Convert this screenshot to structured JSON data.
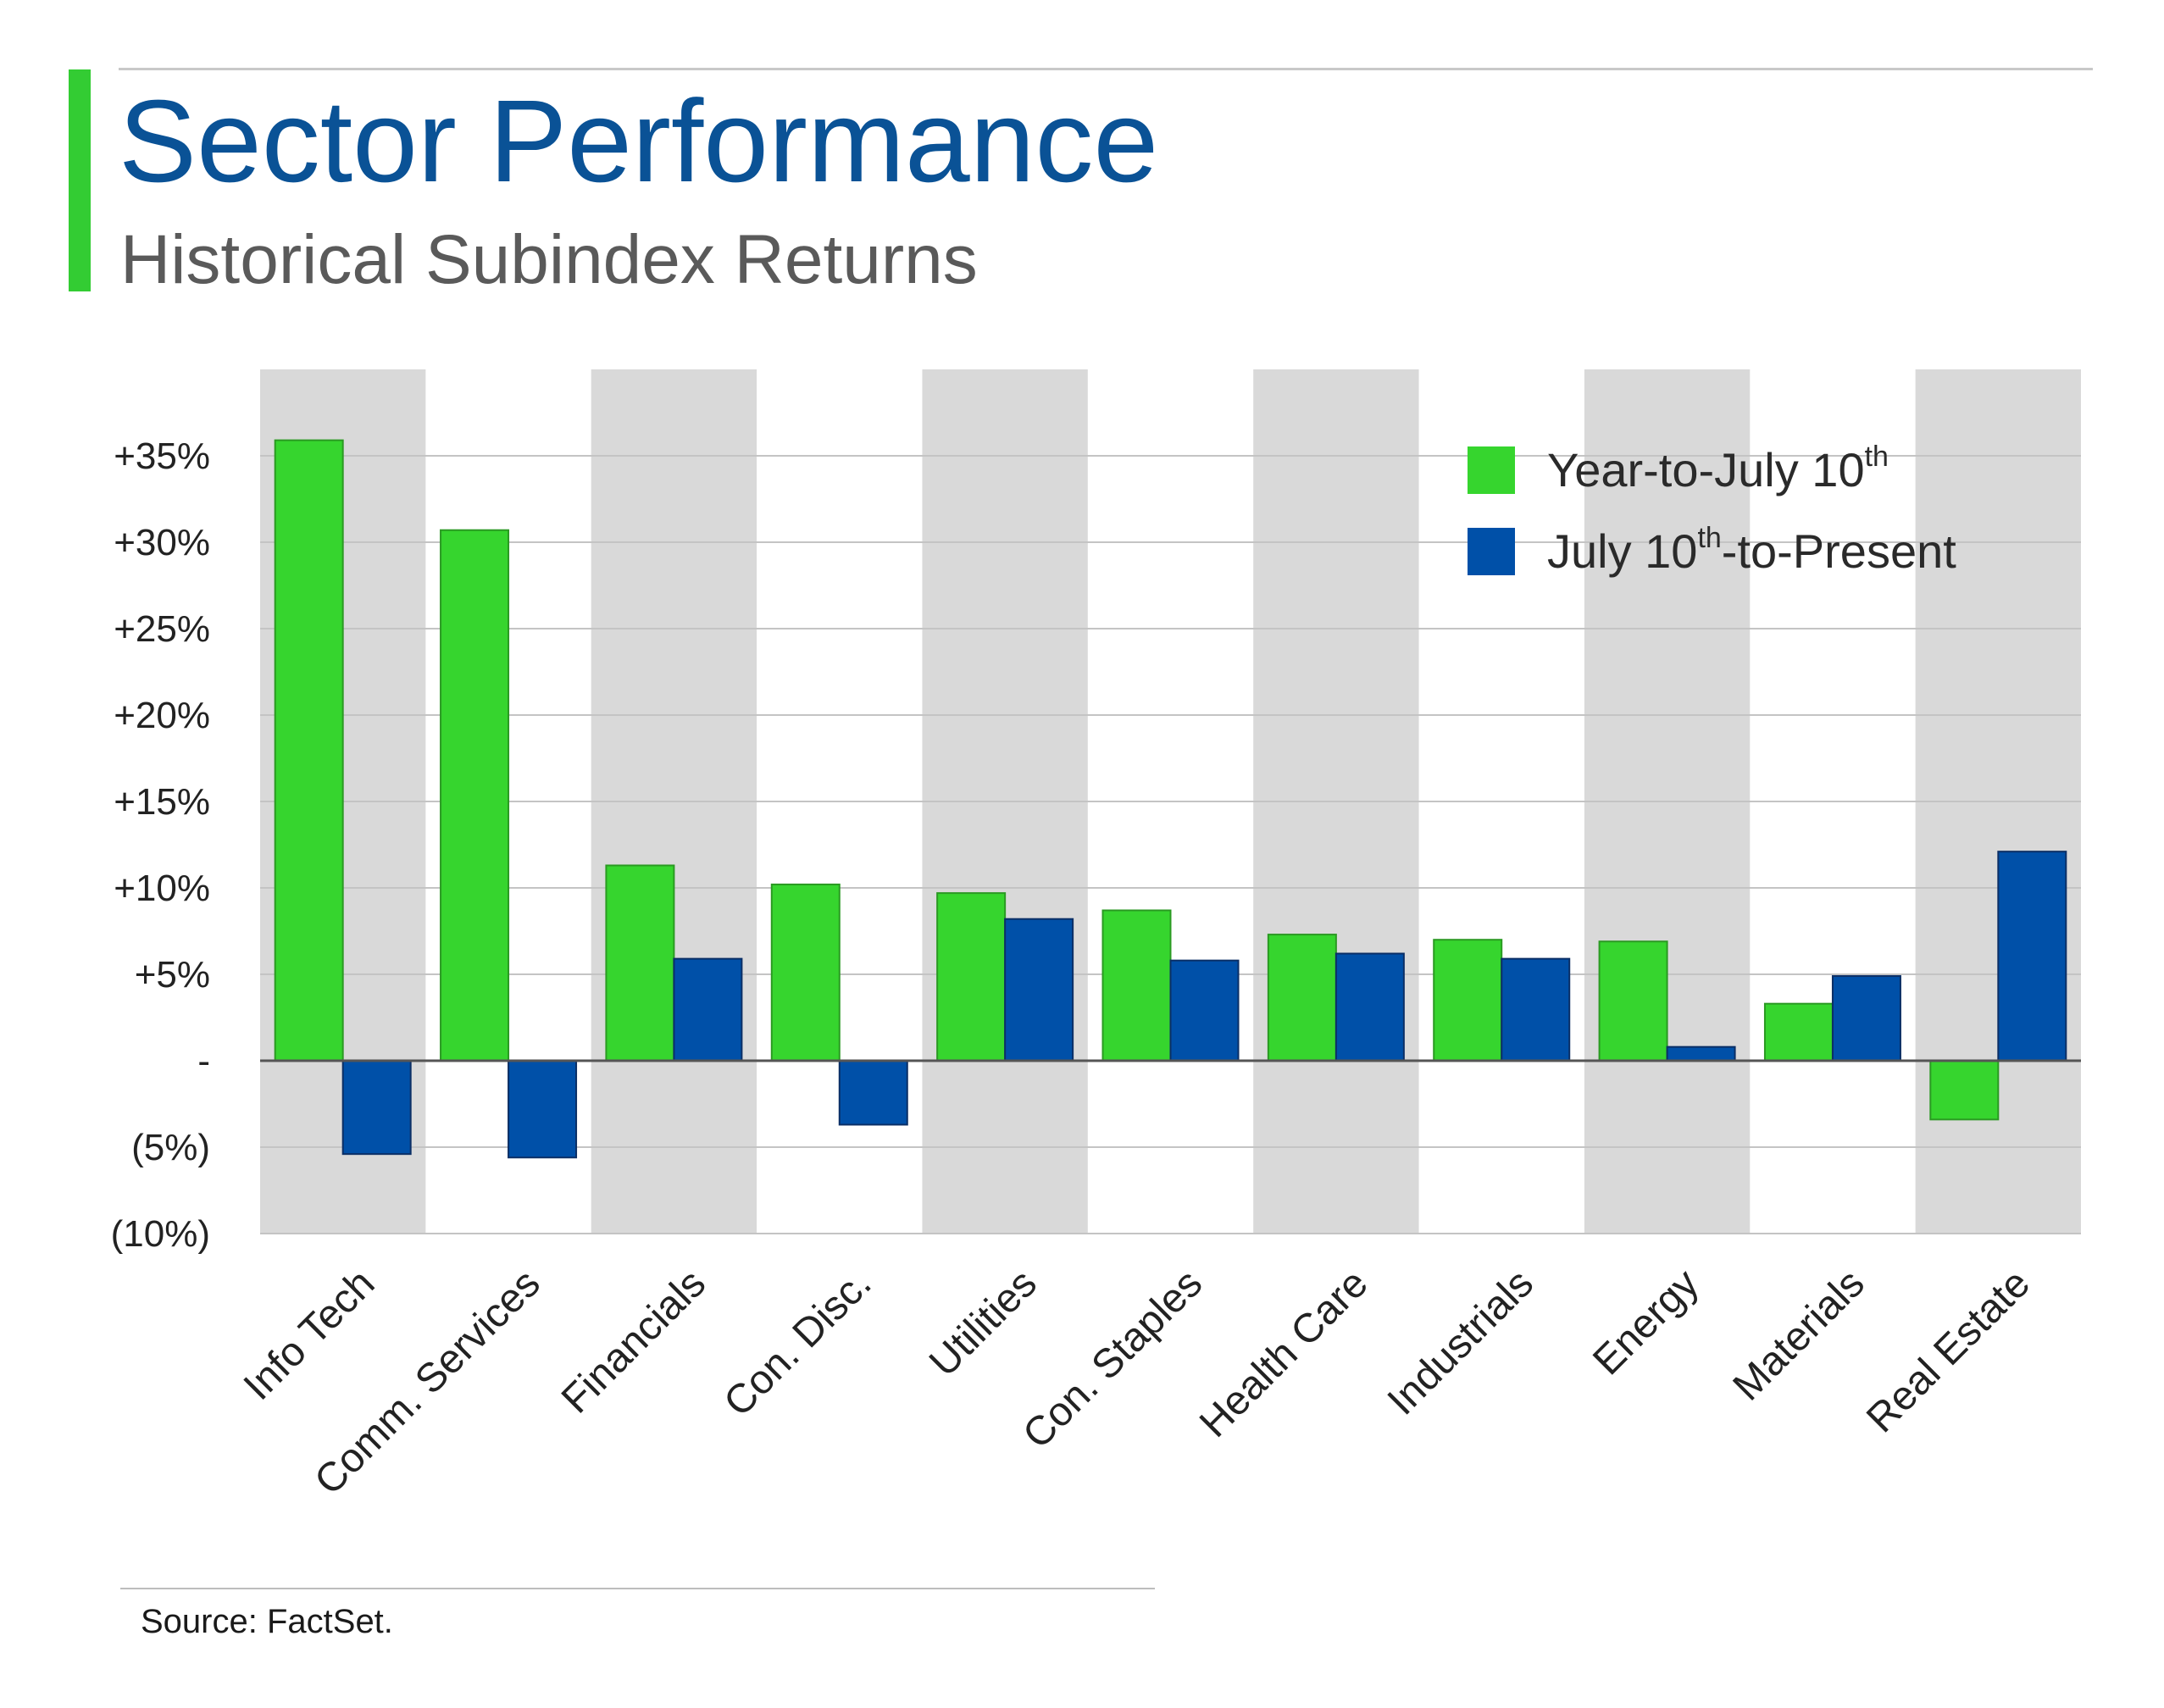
{
  "header": {
    "title": "Sector Performance",
    "subtitle": "Historical Subindex Returns"
  },
  "footer": {
    "source": "Source: FactSet."
  },
  "colors": {
    "accent_bar": "#33cc33",
    "title": "#0a5296",
    "series_ytd": "#36d52e",
    "series_ytd_border": "#2a9a22",
    "series_since": "#0050a8",
    "series_since_border": "#0b2f66",
    "band": "#d9d9d9",
    "gridline": "#c4c4c4",
    "zero_line": "#555555",
    "axis_text": "#222222"
  },
  "legend": {
    "items": [
      {
        "pre": "Year-to-July 10",
        "sup": "th",
        "suf": ""
      },
      {
        "pre": "July 10",
        "sup": "th",
        "suf": "-to-Present"
      }
    ],
    "placement": "top-right"
  },
  "chart_data": {
    "type": "bar",
    "categories": [
      "Info Tech",
      "Comm. Services",
      "Financials",
      "Con. Disc.",
      "Utilities",
      "Con. Staples",
      "Health Care",
      "Industrials",
      "Energy",
      "Materials",
      "Real Estate"
    ],
    "series": [
      {
        "name": "Year-to-July 10th",
        "values": [
          35.9,
          30.7,
          11.3,
          10.2,
          9.7,
          8.7,
          7.3,
          7.0,
          6.9,
          3.3,
          -3.4
        ]
      },
      {
        "name": "July 10th-to-Present",
        "values": [
          -5.4,
          -5.6,
          5.9,
          -3.7,
          8.2,
          5.8,
          6.2,
          5.9,
          0.8,
          4.9,
          12.1
        ]
      }
    ],
    "ylim": [
      -10,
      40
    ],
    "yticks": [
      {
        "value": 35,
        "label": "+35%"
      },
      {
        "value": 30,
        "label": "+30%"
      },
      {
        "value": 25,
        "label": "+25%"
      },
      {
        "value": 20,
        "label": "+20%"
      },
      {
        "value": 15,
        "label": "+15%"
      },
      {
        "value": 10,
        "label": "+10%"
      },
      {
        "value": 5,
        "label": "+5%"
      },
      {
        "value": 0,
        "label": "-"
      },
      {
        "value": -5,
        "label": "(5%)"
      },
      {
        "value": -10,
        "label": "(10%)"
      }
    ],
    "grid": true,
    "shaded_categories": [
      "Info Tech",
      "Financials",
      "Utilities",
      "Health Care",
      "Energy",
      "Real Estate"
    ],
    "xlabel": "",
    "ylabel": "",
    "legend_placement": "top-right"
  }
}
